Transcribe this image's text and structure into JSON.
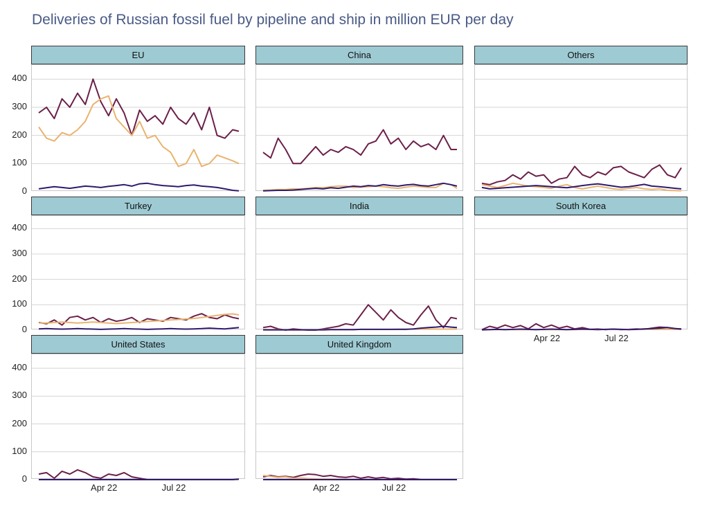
{
  "title": "Deliveries of Russian fossil fuel by pipeline and ship in million EUR per day",
  "colors": {
    "series_a": "#6b1f49",
    "series_b": "#e9b36f",
    "series_c": "#2f1a6e",
    "strip": "#9ecad3",
    "grid": "#d4d4d4"
  },
  "y_ticks": [
    "0",
    "100",
    "200",
    "300",
    "400"
  ],
  "x_ticks": [
    "Apr 22",
    "Jul 22"
  ],
  "chart_data": {
    "type": "line",
    "facets": [
      "EU",
      "China",
      "Others",
      "Turkey",
      "India",
      "South Korea",
      "United States",
      "United Kingdom"
    ],
    "x_range": [
      "2022-01-15",
      "2022-09-30"
    ],
    "ylim": [
      0,
      450
    ],
    "x": [
      0,
      10,
      20,
      30,
      40,
      50,
      60,
      70,
      80,
      90,
      100,
      110,
      120,
      130,
      140,
      150,
      160,
      170,
      180,
      190,
      200,
      210,
      220,
      230,
      240,
      250,
      258
    ],
    "panels": [
      {
        "name": "EU",
        "series": [
          {
            "values": [
              280,
              300,
              260,
              330,
              300,
              350,
              310,
              400,
              320,
              270,
              330,
              280,
              200,
              290,
              250,
              270,
              240,
              300,
              260,
              240,
              280,
              220,
              300,
              200,
              190,
              220,
              215
            ]
          },
          {
            "values": [
              230,
              190,
              180,
              210,
              200,
              220,
              250,
              310,
              330,
              340,
              260,
              230,
              200,
              250,
              190,
              200,
              160,
              140,
              90,
              100,
              150,
              90,
              100,
              130,
              120,
              110,
              100
            ]
          },
          {
            "values": [
              10,
              14,
              18,
              15,
              12,
              16,
              20,
              18,
              15,
              19,
              22,
              25,
              20,
              28,
              30,
              25,
              22,
              20,
              18,
              22,
              24,
              20,
              18,
              15,
              10,
              5,
              3
            ]
          }
        ]
      },
      {
        "name": "China",
        "series": [
          {
            "values": [
              140,
              120,
              190,
              150,
              100,
              100,
              130,
              160,
              130,
              150,
              140,
              160,
              150,
              130,
              170,
              180,
              220,
              170,
              190,
              150,
              180,
              160,
              170,
              150,
              200,
              150,
              150
            ]
          },
          {
            "values": [
              5,
              6,
              8,
              8,
              10,
              10,
              12,
              15,
              14,
              18,
              20,
              20,
              15,
              16,
              18,
              20,
              18,
              14,
              12,
              16,
              20,
              18,
              15,
              15,
              30,
              25,
              12
            ]
          },
          {
            "values": [
              3,
              4,
              5,
              5,
              6,
              8,
              10,
              12,
              10,
              14,
              12,
              16,
              20,
              18,
              22,
              20,
              25,
              22,
              20,
              24,
              26,
              22,
              20,
              25,
              30,
              25,
              20
            ]
          }
        ]
      },
      {
        "name": "Others",
        "series": [
          {
            "values": [
              30,
              25,
              35,
              40,
              60,
              45,
              70,
              55,
              60,
              30,
              45,
              50,
              90,
              60,
              50,
              70,
              60,
              85,
              90,
              70,
              60,
              50,
              80,
              95,
              60,
              50,
              85
            ]
          },
          {
            "values": [
              25,
              20,
              15,
              22,
              30,
              25,
              20,
              18,
              15,
              12,
              20,
              25,
              15,
              10,
              15,
              20,
              15,
              10,
              8,
              12,
              15,
              10,
              8,
              10,
              5,
              4,
              3
            ]
          },
          {
            "values": [
              15,
              10,
              12,
              14,
              16,
              18,
              20,
              22,
              20,
              18,
              16,
              14,
              18,
              22,
              25,
              28,
              24,
              20,
              16,
              18,
              22,
              26,
              20,
              18,
              15,
              12,
              10
            ]
          }
        ]
      },
      {
        "name": "Turkey",
        "series": [
          {
            "values": [
              30,
              25,
              40,
              20,
              50,
              55,
              40,
              50,
              30,
              45,
              35,
              40,
              50,
              30,
              45,
              40,
              35,
              50,
              45,
              40,
              55,
              65,
              50,
              45,
              60,
              50,
              45
            ]
          },
          {
            "values": [
              28,
              28,
              30,
              32,
              30,
              28,
              30,
              32,
              30,
              28,
              26,
              28,
              30,
              32,
              34,
              36,
              38,
              40,
              42,
              44,
              46,
              50,
              54,
              58,
              62,
              64,
              60
            ]
          },
          {
            "values": [
              5,
              6,
              5,
              4,
              5,
              6,
              5,
              4,
              3,
              4,
              5,
              6,
              5,
              4,
              3,
              4,
              5,
              6,
              5,
              4,
              5,
              6,
              8,
              6,
              5,
              8,
              10
            ]
          }
        ]
      },
      {
        "name": "India",
        "series": [
          {
            "values": [
              10,
              15,
              5,
              0,
              5,
              2,
              0,
              0,
              5,
              10,
              15,
              25,
              20,
              60,
              100,
              70,
              40,
              80,
              50,
              30,
              20,
              60,
              95,
              40,
              10,
              50,
              45
            ]
          },
          {
            "values": [
              2,
              2,
              2,
              1,
              1,
              1,
              1,
              1,
              2,
              2,
              2,
              2,
              2,
              3,
              3,
              3,
              3,
              3,
              4,
              4,
              4,
              4,
              4,
              4,
              4,
              4,
              4
            ]
          },
          {
            "values": [
              1,
              1,
              1,
              1,
              1,
              1,
              1,
              1,
              1,
              2,
              2,
              2,
              2,
              3,
              3,
              3,
              3,
              3,
              3,
              3,
              5,
              8,
              10,
              12,
              15,
              12,
              10
            ]
          }
        ]
      },
      {
        "name": "South Korea",
        "series": [
          {
            "values": [
              2,
              15,
              8,
              20,
              10,
              18,
              5,
              25,
              10,
              20,
              8,
              15,
              5,
              10,
              3,
              5,
              2,
              4,
              2,
              3,
              5,
              3,
              8,
              12,
              10,
              6,
              5
            ]
          },
          {
            "values": [
              1,
              2,
              2,
              2,
              2,
              2,
              2,
              2,
              2,
              2,
              2,
              2,
              2,
              3,
              3,
              3,
              3,
              3,
              3,
              3,
              3,
              3,
              3,
              3,
              3,
              3,
              3
            ]
          },
          {
            "values": [
              1,
              2,
              3,
              2,
              3,
              4,
              3,
              2,
              3,
              4,
              3,
              2,
              3,
              4,
              3,
              2,
              3,
              4,
              3,
              2,
              3,
              5,
              6,
              8,
              10,
              6,
              4
            ]
          }
        ]
      },
      {
        "name": "United States",
        "series": [
          {
            "values": [
              20,
              25,
              5,
              30,
              20,
              35,
              25,
              10,
              5,
              20,
              15,
              25,
              10,
              5,
              0,
              0,
              0,
              0,
              0,
              0,
              0,
              0,
              0,
              0,
              0,
              0,
              0
            ]
          },
          {
            "values": [
              0,
              0,
              0,
              0,
              0,
              0,
              0,
              0,
              0,
              0,
              0,
              0,
              0,
              0,
              0,
              0,
              0,
              0,
              0,
              0,
              0,
              0,
              0,
              0,
              0,
              0,
              0
            ]
          },
          {
            "values": [
              0,
              0,
              0,
              0,
              0,
              0,
              0,
              0,
              0,
              0,
              0,
              0,
              0,
              0,
              0,
              0,
              0,
              0,
              0,
              0,
              0,
              0,
              0,
              0,
              0,
              0,
              2
            ]
          }
        ]
      },
      {
        "name": "United Kingdom",
        "series": [
          {
            "values": [
              10,
              15,
              10,
              12,
              8,
              15,
              20,
              18,
              12,
              15,
              10,
              8,
              12,
              5,
              10,
              5,
              8,
              3,
              5,
              2,
              3,
              0,
              0,
              0,
              0,
              0,
              0
            ]
          },
          {
            "values": [
              15,
              12,
              8,
              10,
              5,
              6,
              4,
              3,
              2,
              2,
              1,
              1,
              0,
              0,
              0,
              0,
              0,
              0,
              0,
              0,
              0,
              0,
              0,
              0,
              0,
              0,
              0
            ]
          },
          {
            "values": [
              0,
              0,
              0,
              0,
              0,
              0,
              0,
              0,
              0,
              0,
              0,
              0,
              0,
              0,
              0,
              0,
              0,
              0,
              0,
              0,
              0,
              0,
              0,
              0,
              0,
              0,
              0
            ]
          }
        ]
      }
    ],
    "grid": true
  }
}
